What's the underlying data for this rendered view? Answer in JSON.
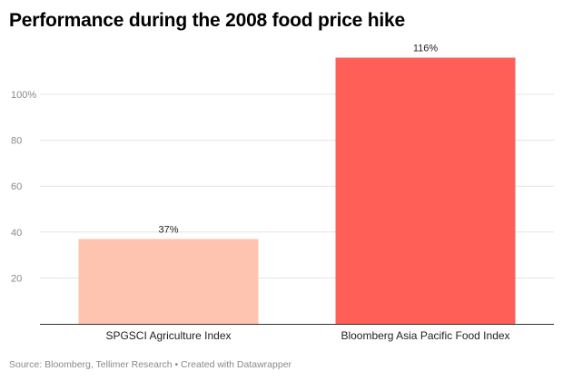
{
  "chart_data": {
    "type": "bar",
    "title": "Performance during the 2008 food price hike",
    "categories": [
      "SPGSCI Agriculture Index",
      "Bloomberg Asia Pacific Food Index"
    ],
    "values": [
      37,
      116
    ],
    "data_labels": [
      "37%",
      "116%"
    ],
    "colors": [
      "#ffc4b0",
      "#ff5f57"
    ],
    "ylim": [
      0,
      120
    ],
    "yticks": [
      20,
      40,
      60,
      80,
      100
    ],
    "ytick_labels": [
      "20",
      "40",
      "60",
      "80",
      "100%"
    ],
    "xlabel": "",
    "ylabel": "",
    "grid": true
  },
  "footer": {
    "source": "Source: Bloomberg, Tellimer Research • Created with Datawrapper"
  }
}
